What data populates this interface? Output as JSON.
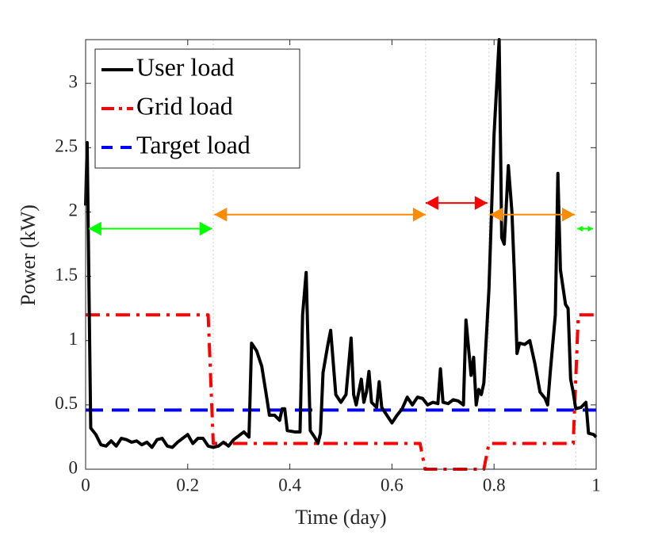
{
  "chart_data": {
    "type": "line",
    "xlabel": "Time (day)",
    "ylabel": "Power (kW)",
    "xlim": [
      0,
      1
    ],
    "ylim": [
      0,
      3.34
    ],
    "xticks": [
      0,
      0.2,
      0.4,
      0.6,
      0.8,
      1
    ],
    "yticks": [
      0,
      0.5,
      1,
      1.5,
      2,
      2.5,
      3
    ],
    "legend": "upper left",
    "vlines": [
      0.25,
      0.666,
      0.79,
      0.96
    ],
    "series": [
      {
        "name": "User load",
        "color": "#000000",
        "linestyle": "-",
        "x": [
          0,
          0.003,
          0.01,
          0.02,
          0.03,
          0.04,
          0.05,
          0.06,
          0.07,
          0.08,
          0.09,
          0.1,
          0.11,
          0.12,
          0.13,
          0.14,
          0.15,
          0.16,
          0.17,
          0.18,
          0.19,
          0.2,
          0.21,
          0.22,
          0.23,
          0.24,
          0.25,
          0.26,
          0.27,
          0.28,
          0.29,
          0.3,
          0.31,
          0.32,
          0.325,
          0.335,
          0.345,
          0.355,
          0.36,
          0.37,
          0.38,
          0.385,
          0.39,
          0.395,
          0.41,
          0.42,
          0.425,
          0.432,
          0.44,
          0.45,
          0.455,
          0.46,
          0.465,
          0.475,
          0.48,
          0.49,
          0.5,
          0.51,
          0.52,
          0.525,
          0.53,
          0.54,
          0.545,
          0.55,
          0.555,
          0.56,
          0.57,
          0.575,
          0.58,
          0.59,
          0.6,
          0.61,
          0.62,
          0.63,
          0.64,
          0.65,
          0.66,
          0.67,
          0.68,
          0.69,
          0.695,
          0.7,
          0.71,
          0.72,
          0.73,
          0.74,
          0.745,
          0.755,
          0.76,
          0.765,
          0.77,
          0.775,
          0.78,
          0.79,
          0.8,
          0.81,
          0.815,
          0.82,
          0.828,
          0.835,
          0.84,
          0.845,
          0.85,
          0.86,
          0.87,
          0.88,
          0.89,
          0.9,
          0.905,
          0.91,
          0.92,
          0.925,
          0.93,
          0.94,
          0.945,
          0.95,
          0.955,
          0.96,
          0.97,
          0.98,
          0.985,
          0.995,
          1
        ],
        "values": [
          2.05,
          2.54,
          0.32,
          0.27,
          0.19,
          0.18,
          0.22,
          0.18,
          0.24,
          0.23,
          0.21,
          0.22,
          0.19,
          0.21,
          0.17,
          0.23,
          0.24,
          0.18,
          0.17,
          0.21,
          0.24,
          0.27,
          0.2,
          0.24,
          0.24,
          0.18,
          0.17,
          0.18,
          0.21,
          0.18,
          0.23,
          0.26,
          0.29,
          0.25,
          0.98,
          0.92,
          0.8,
          0.55,
          0.42,
          0.42,
          0.38,
          0.47,
          0.47,
          0.3,
          0.29,
          0.29,
          1.2,
          1.53,
          0.3,
          0.24,
          0.2,
          0.28,
          0.75,
          0.98,
          1.08,
          0.58,
          0.52,
          0.58,
          1.02,
          0.58,
          0.5,
          0.7,
          0.52,
          0.6,
          0.76,
          0.52,
          0.48,
          0.68,
          0.48,
          0.42,
          0.36,
          0.42,
          0.47,
          0.56,
          0.5,
          0.56,
          0.55,
          0.5,
          0.52,
          0.51,
          0.78,
          0.52,
          0.51,
          0.54,
          0.53,
          0.5,
          1.16,
          0.73,
          0.87,
          0.5,
          0.62,
          0.58,
          0.67,
          1.4,
          2.6,
          3.34,
          1.8,
          1.75,
          2.36,
          2.0,
          1.5,
          0.9,
          0.98,
          0.97,
          1.0,
          0.82,
          0.6,
          0.55,
          0.5,
          0.75,
          1.2,
          2.3,
          1.55,
          1.28,
          1.25,
          0.7,
          0.6,
          0.47,
          0.48,
          0.52,
          0.28,
          0.27,
          0.25
        ]
      },
      {
        "name": "Grid load",
        "color": "#ff0000",
        "linestyle": "-.",
        "x": [
          0,
          0.24,
          0.25,
          0.655,
          0.665,
          0.78,
          0.79,
          0.955,
          0.965,
          1
        ],
        "values": [
          1.2,
          1.2,
          0.2,
          0.2,
          0,
          0,
          0.2,
          0.2,
          1.2,
          1.2
        ]
      },
      {
        "name": "Target load",
        "color": "#0000ff",
        "linestyle": "--",
        "x": [
          0,
          1
        ],
        "values": [
          0.46,
          0.46
        ]
      }
    ],
    "arrows": [
      {
        "x": [
          0.006,
          0.248
        ],
        "y": 1.87,
        "color": "#00ff00"
      },
      {
        "x": [
          0.252,
          0.666
        ],
        "y": 1.98,
        "color": "#ff8c00"
      },
      {
        "x": [
          0.666,
          0.787
        ],
        "y": 2.07,
        "color": "#ff0000"
      },
      {
        "x": [
          0.792,
          0.958
        ],
        "y": 1.98,
        "color": "#ff8c00"
      },
      {
        "x": [
          0.963,
          0.994
        ],
        "y": 1.87,
        "color": "#00ff00"
      }
    ]
  }
}
